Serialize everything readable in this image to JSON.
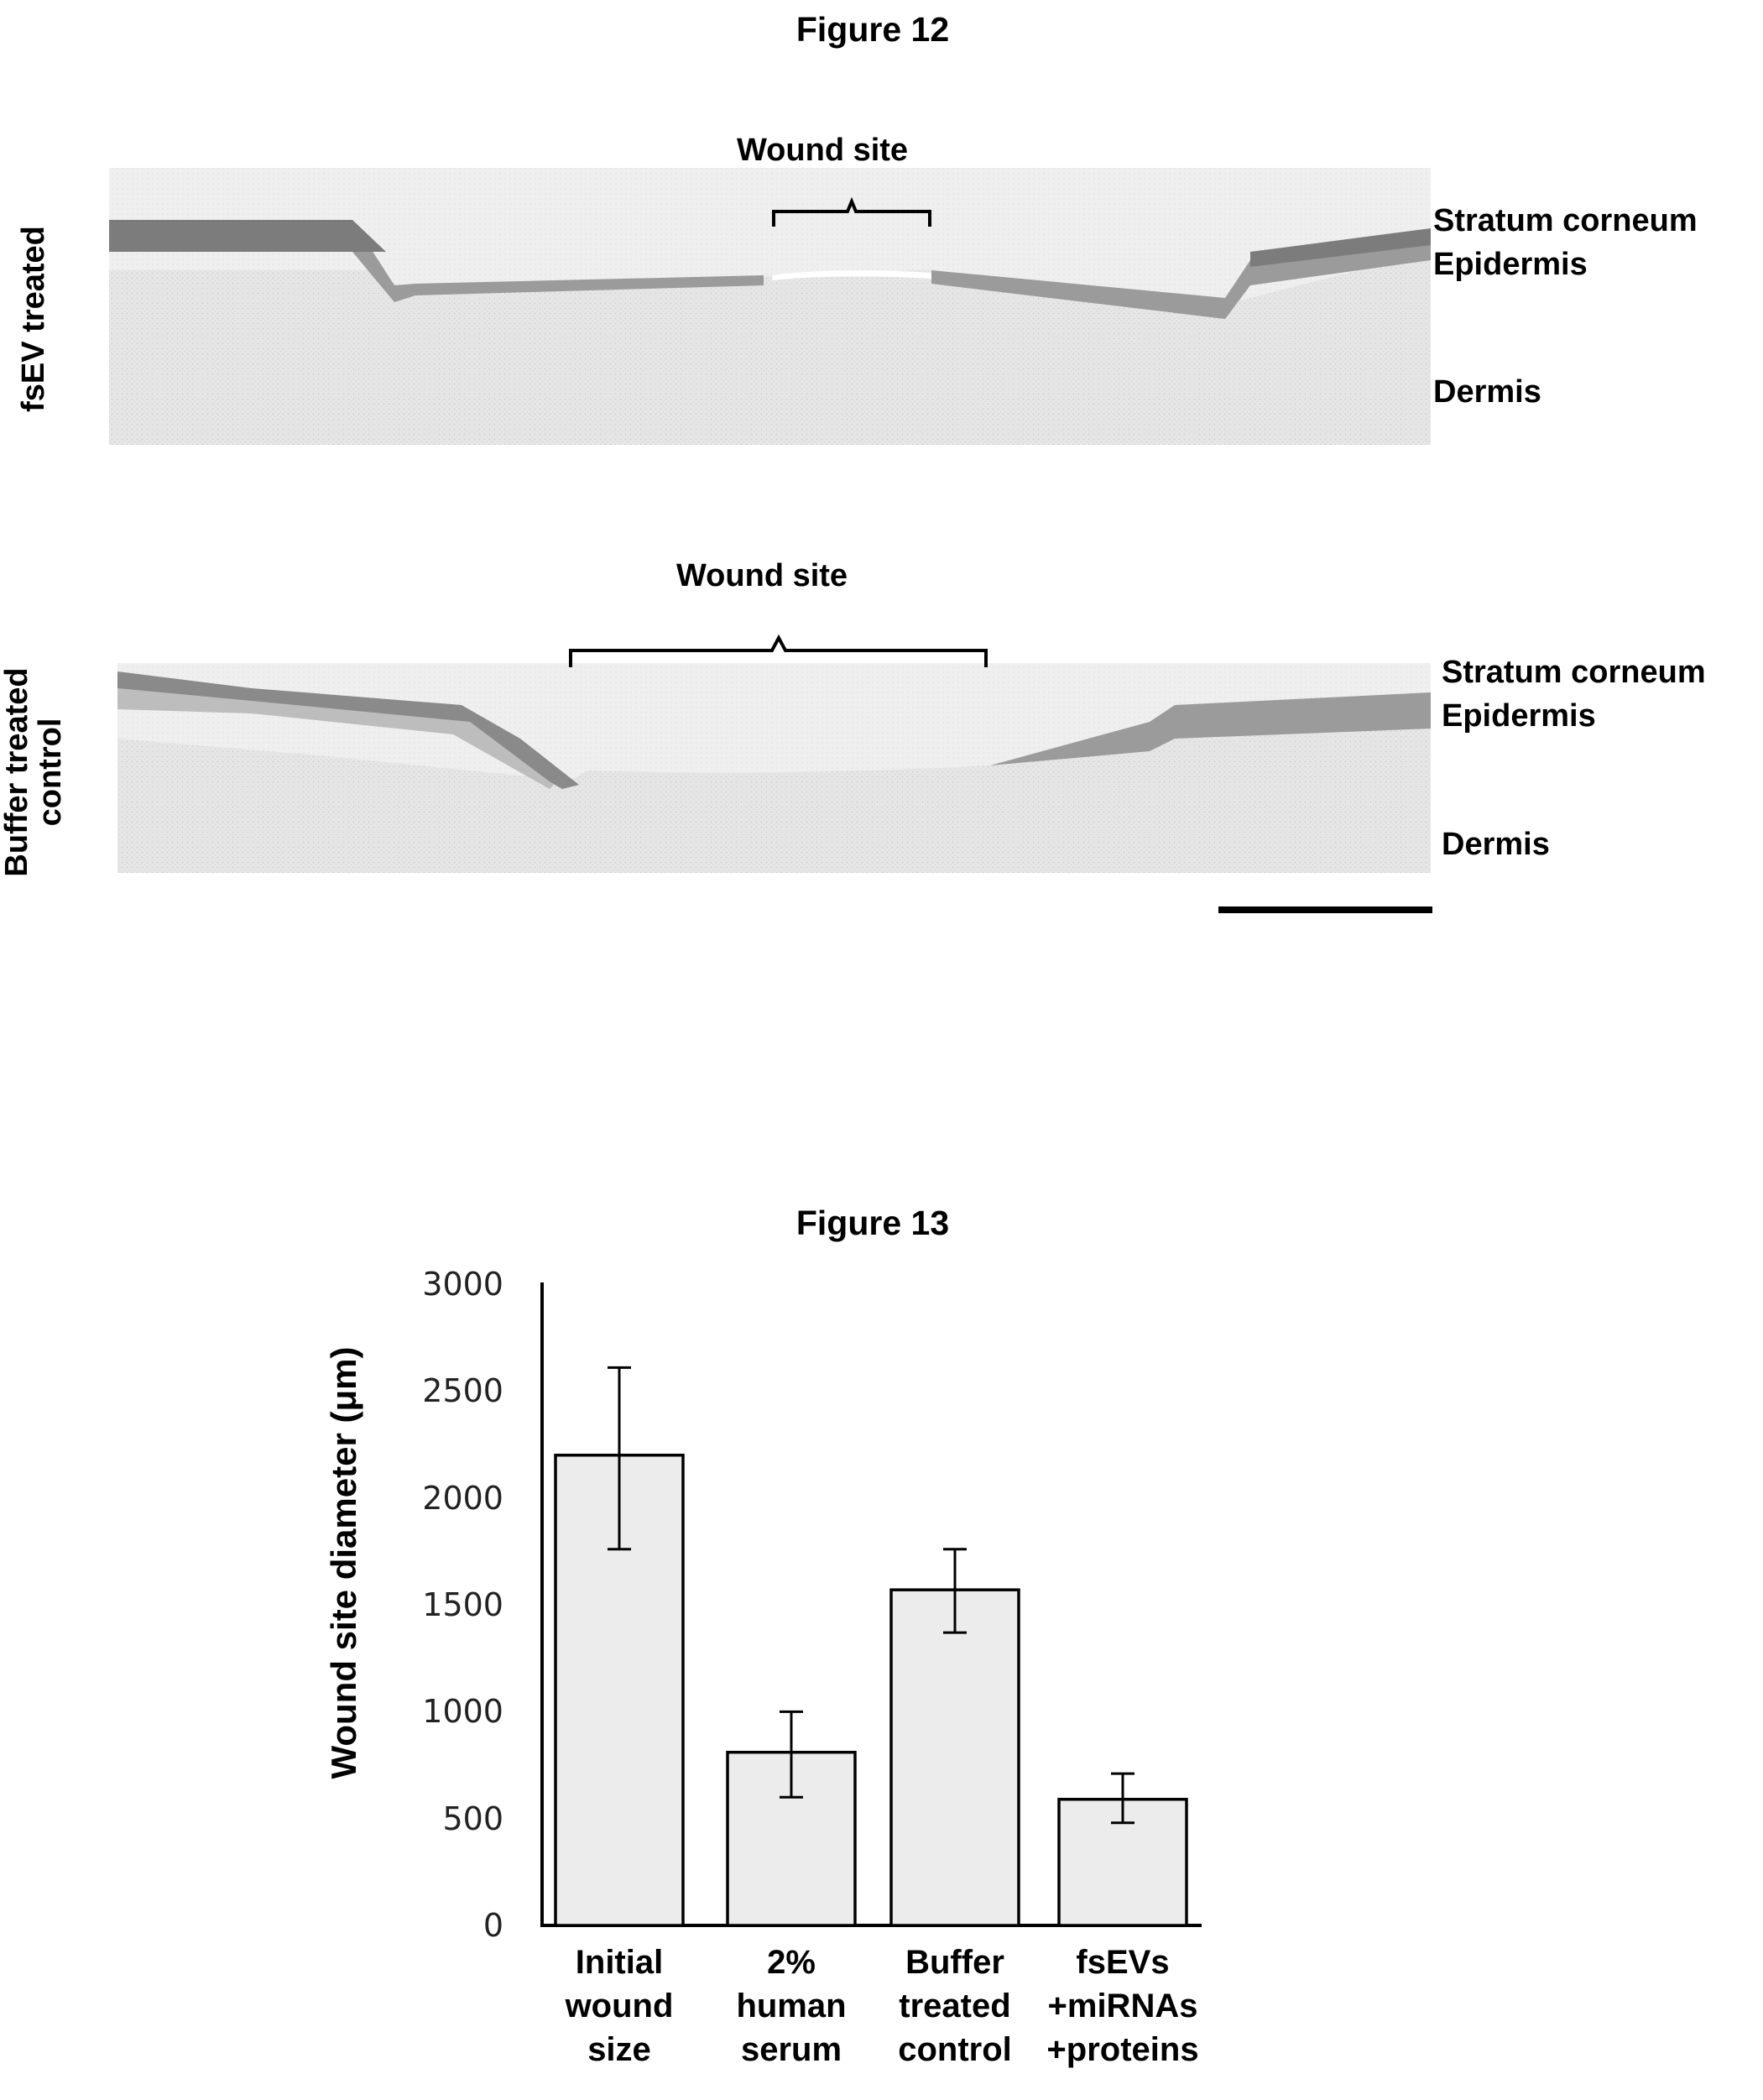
{
  "figure12": {
    "title": "Figure 12",
    "panel_top": {
      "row_label": "fsEV treated",
      "wound_label": "Wound site",
      "layers": [
        "Stratum corneum",
        "Epidermis",
        "Dermis"
      ]
    },
    "panel_bottom": {
      "row_label_line1": "Buffer treated",
      "row_label_line2": "control",
      "wound_label": "Wound site",
      "layers": [
        "Stratum corneum",
        "Epidermis",
        "Dermis"
      ]
    }
  },
  "figure13": {
    "title": "Figure 13",
    "ylabel": "Wound site diameter (μm)",
    "yticks": [
      "3000",
      "2500",
      "2000",
      "1500",
      "1000",
      "500",
      "0"
    ],
    "category_lines": [
      [
        "Initial",
        "wound",
        "size"
      ],
      [
        "2%",
        "human",
        "serum"
      ],
      [
        "Buffer",
        "treated",
        "control"
      ],
      [
        "fsEVs",
        "+miRNAs",
        "+proteins"
      ]
    ]
  },
  "chart_data": {
    "type": "bar",
    "categories": [
      "Initial wound size",
      "2% human serum",
      "Buffer treated control",
      "fsEVs +miRNAs +proteins"
    ],
    "values": [
      2200,
      810,
      1570,
      590
    ],
    "error_low": [
      1760,
      600,
      1370,
      480
    ],
    "error_high": [
      2610,
      1000,
      1760,
      710
    ],
    "title": "Figure 13",
    "xlabel": "",
    "ylabel": "Wound site diameter (μm)",
    "ylim": [
      0,
      3000
    ],
    "grid": false
  }
}
